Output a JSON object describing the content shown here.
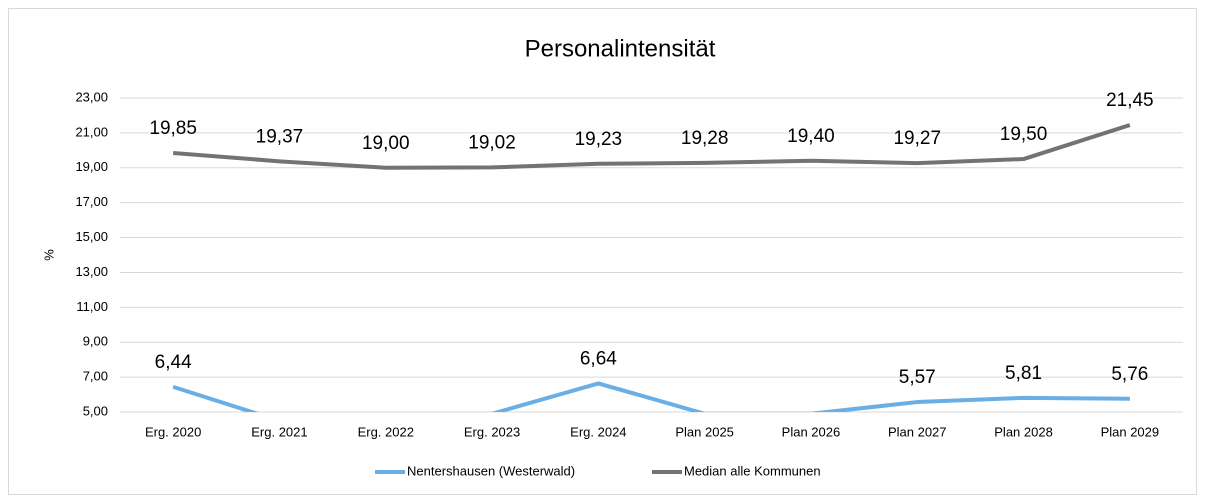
{
  "chart_data": {
    "type": "line",
    "title": "Personalintensität",
    "y_label": "%",
    "categories": [
      "Erg. 2020",
      "Erg. 2021",
      "Erg. 2022",
      "Erg. 2023",
      "Erg. 2024",
      "Plan 2025",
      "Plan 2026",
      "Plan 2027",
      "Plan 2028",
      "Plan 2029"
    ],
    "series": [
      {
        "name": "Nentershausen (Westerwald)",
        "color": "#6aaee6",
        "values": [
          6.44,
          4.5,
          4.3,
          4.9,
          6.64,
          4.9,
          4.9,
          5.57,
          5.81,
          5.76
        ],
        "value_labels": [
          "6,44",
          null,
          null,
          null,
          "6,64",
          null,
          null,
          "5,57",
          "5,81",
          "5,76"
        ]
      },
      {
        "name": "Median alle Kommunen",
        "color": "#737373",
        "values": [
          19.85,
          19.37,
          19.0,
          19.02,
          19.23,
          19.28,
          19.4,
          19.27,
          19.5,
          21.45
        ],
        "value_labels": [
          "19,85",
          "19,37",
          "19,00",
          "19,02",
          "19,23",
          "19,28",
          "19,40",
          "19,27",
          "19,50",
          "21,45"
        ]
      }
    ],
    "ylim": [
      5,
      23
    ],
    "yticks": [
      {
        "value": 5,
        "label": "5,00"
      },
      {
        "value": 7,
        "label": "7,00"
      },
      {
        "value": 9,
        "label": "9,00"
      },
      {
        "value": 11,
        "label": "11,00"
      },
      {
        "value": 13,
        "label": "13,00"
      },
      {
        "value": 15,
        "label": "15,00"
      },
      {
        "value": 17,
        "label": "17,00"
      },
      {
        "value": 19,
        "label": "19,00"
      },
      {
        "value": 21,
        "label": "21,00"
      },
      {
        "value": 23,
        "label": "23,00"
      }
    ],
    "grid": true,
    "legend": "bottom"
  }
}
